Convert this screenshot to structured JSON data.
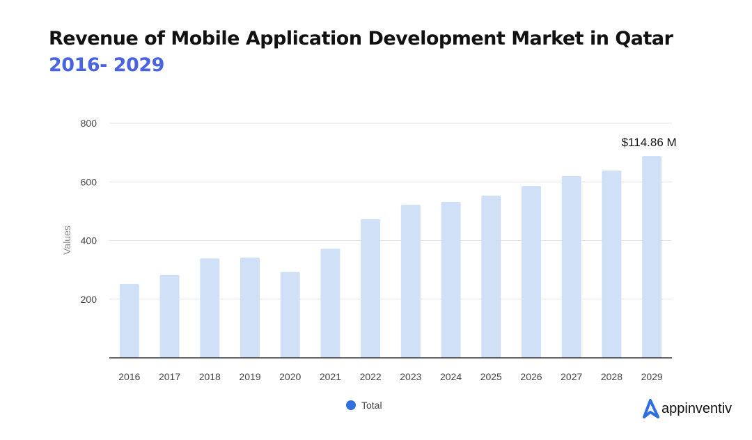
{
  "chart_data": {
    "type": "bar",
    "title": "Revenue of Mobile Application Development Market in Qatar",
    "subtitle": "2016- 2029",
    "xlabel": "",
    "ylabel": "Values",
    "ylim": [
      0,
      800
    ],
    "yticks": [
      "200",
      "400",
      "600",
      "800"
    ],
    "ytick_values": [
      200,
      400,
      600,
      800
    ],
    "grid": true,
    "categories": [
      "2016",
      "2017",
      "2018",
      "2019",
      "2020",
      "2021",
      "2022",
      "2023",
      "2024",
      "2025",
      "2026",
      "2027",
      "2028",
      "2029"
    ],
    "series": [
      {
        "name": "Total",
        "values": [
          252,
          283,
          339,
          342,
          293,
          372,
          473,
          522,
          532,
          553,
          586,
          620,
          639,
          688
        ]
      }
    ],
    "annotation": "$114.86 M",
    "legend_position": "bottom",
    "colors": {
      "bar": "#cddff7",
      "legend": "#2f6fe0"
    }
  },
  "brand": "appinventiv"
}
